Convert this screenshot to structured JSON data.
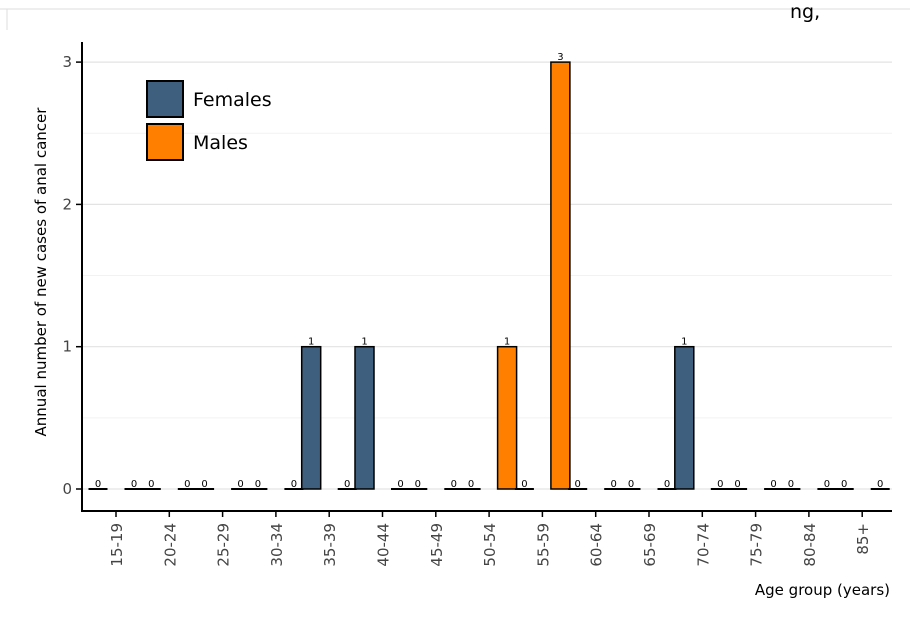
{
  "chart_data": {
    "type": "bar",
    "title": "",
    "xlabel": "Age group (years)",
    "ylabel": "Annual number of new cases of anal cancer",
    "ylim": [
      0,
      3.15
    ],
    "yticks": [
      0,
      1,
      2,
      3
    ],
    "grid": true,
    "legend_position": "top-left",
    "categories": [
      "15-19",
      "20-24",
      "25-29",
      "30-34",
      "35-39",
      "40-44",
      "45-49",
      "50-54",
      "55-59",
      "60-64",
      "65-69",
      "70-74",
      "75-79",
      "80-84",
      "85+"
    ],
    "series": [
      {
        "name": "Females",
        "color": "#3e5f7d",
        "values": [
          0,
          0,
          0,
          0,
          1,
          1,
          0,
          0,
          0,
          0,
          0,
          1,
          0,
          0,
          0
        ]
      },
      {
        "name": "Males",
        "color": "#ff8000",
        "values": [
          0,
          0,
          0,
          0,
          0,
          0,
          0,
          1,
          3,
          0,
          0,
          0,
          0,
          0,
          0
        ]
      }
    ],
    "partial_title_fragment": "ng, "
  }
}
